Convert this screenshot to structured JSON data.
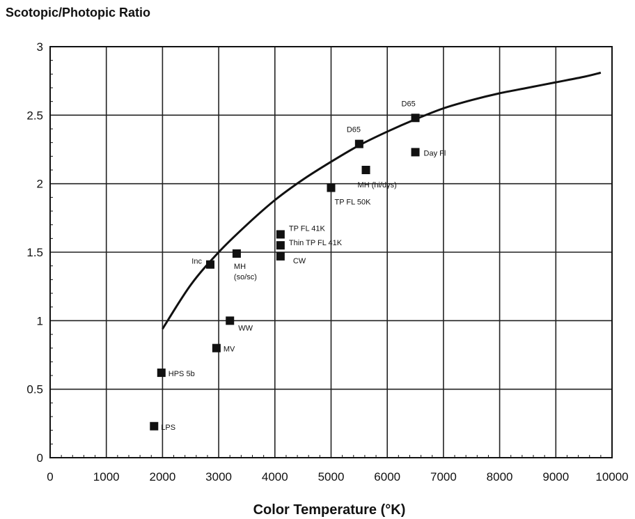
{
  "chart_data": {
    "type": "scatter",
    "title": "",
    "ylabel": "Scotopic/Photopic Ratio",
    "xlabel": "Color Temperature (°K)",
    "xlim": [
      0,
      10000
    ],
    "ylim": [
      0,
      3
    ],
    "x_ticks": [
      "0",
      "1000",
      "2000",
      "3000",
      "4000",
      "5000",
      "6000",
      "7000",
      "8000",
      "9000",
      "10000"
    ],
    "y_ticks": [
      "0",
      "0.5",
      "1",
      "1.5",
      "2",
      "2.5",
      "3"
    ],
    "grid": true,
    "legend": "none",
    "curve": {
      "x": [
        2000,
        2500,
        3000,
        3500,
        4000,
        4500,
        5000,
        5500,
        6000,
        6500,
        7000,
        7500,
        8000,
        8500,
        9000,
        9500,
        9800
      ],
      "y": [
        0.94,
        1.26,
        1.5,
        1.7,
        1.88,
        2.03,
        2.16,
        2.28,
        2.38,
        2.47,
        2.55,
        2.61,
        2.66,
        2.7,
        2.74,
        2.78,
        2.81
      ]
    },
    "points": [
      {
        "label": "LPS",
        "x": 1850,
        "y": 0.23
      },
      {
        "label": "HPS 5b",
        "x": 1980,
        "y": 0.62
      },
      {
        "label": "MV",
        "x": 2960,
        "y": 0.8
      },
      {
        "label": "WW",
        "x": 3200,
        "y": 1.0
      },
      {
        "label": "Inc",
        "x": 2850,
        "y": 1.41
      },
      {
        "label": "MH\n(so/sc)",
        "x": 3320,
        "y": 1.49
      },
      {
        "label": "TP FL 41K",
        "x": 4100,
        "y": 1.63
      },
      {
        "label": "Thin TP FL 41K",
        "x": 4100,
        "y": 1.55
      },
      {
        "label": "CW",
        "x": 4100,
        "y": 1.47
      },
      {
        "label": "TP FL 50K",
        "x": 5000,
        "y": 1.97
      },
      {
        "label": "D65",
        "x": 5500,
        "y": 2.29
      },
      {
        "label": "MH (hi/dys)",
        "x": 5620,
        "y": 2.1
      },
      {
        "label": "D65",
        "x": 6500,
        "y": 2.48
      },
      {
        "label": "Day Fl",
        "x": 6500,
        "y": 2.23
      }
    ]
  }
}
